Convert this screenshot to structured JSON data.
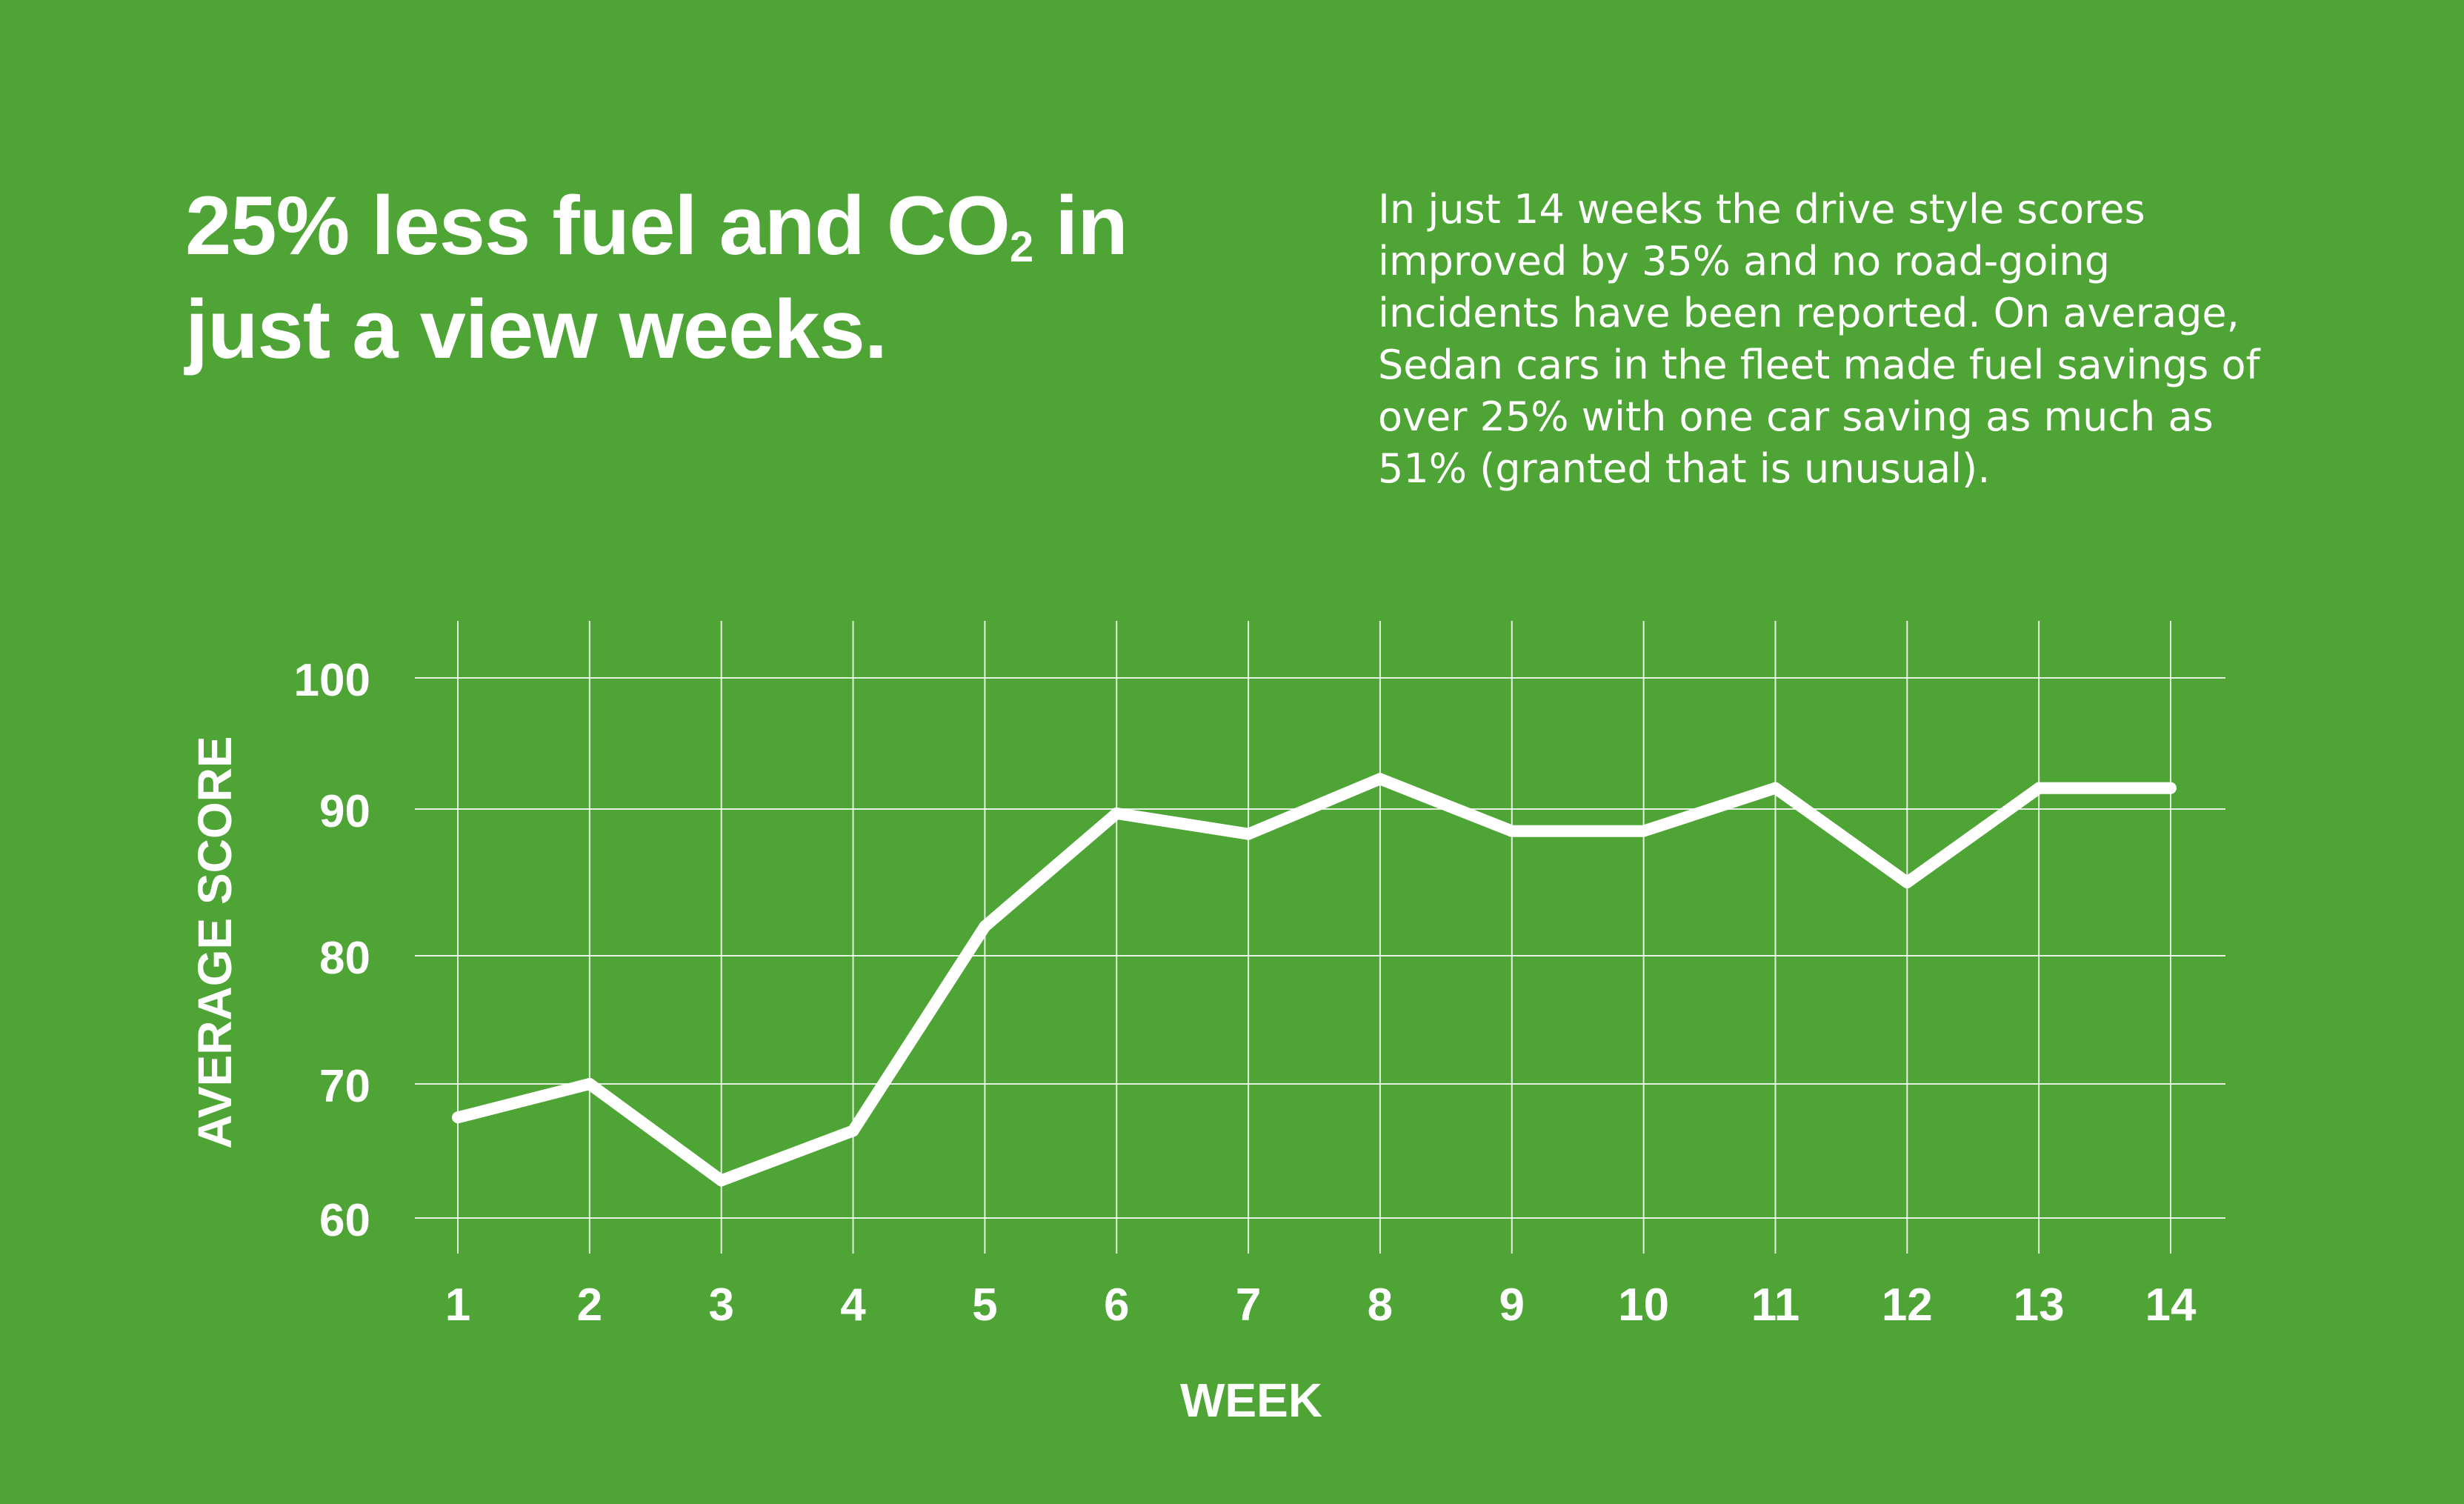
{
  "headline": {
    "part1": "25% less fuel and CO",
    "sub": "2",
    "part2": " in just a view weeks."
  },
  "description": "In just 14 weeks the drive style scores improved by 35% and no road-going incidents have been reported. On average, Sedan cars in the fleet made fuel savings of over 25% with one car saving as much as 51% (granted that is unusual).",
  "colors": {
    "background": "#4ea535",
    "foreground": "#ffffff"
  },
  "chart_data": {
    "type": "line",
    "xlabel": "WEEK",
    "ylabel": "AVERAGE SCORE",
    "x": [
      1,
      2,
      3,
      4,
      5,
      6,
      7,
      8,
      9,
      10,
      11,
      12,
      13,
      14
    ],
    "y": [
      67.5,
      70,
      62.8,
      66.5,
      82,
      89.7,
      88.3,
      92.3,
      88.5,
      88.5,
      91.6,
      85,
      91.6,
      91.6
    ],
    "y_ticks": [
      60,
      70,
      80,
      90,
      100
    ],
    "x_ticks": [
      1,
      2,
      3,
      4,
      5,
      6,
      7,
      8,
      9,
      10,
      11,
      12,
      13,
      14
    ],
    "ylim": [
      60,
      100
    ],
    "grid": true,
    "legend": "none"
  }
}
